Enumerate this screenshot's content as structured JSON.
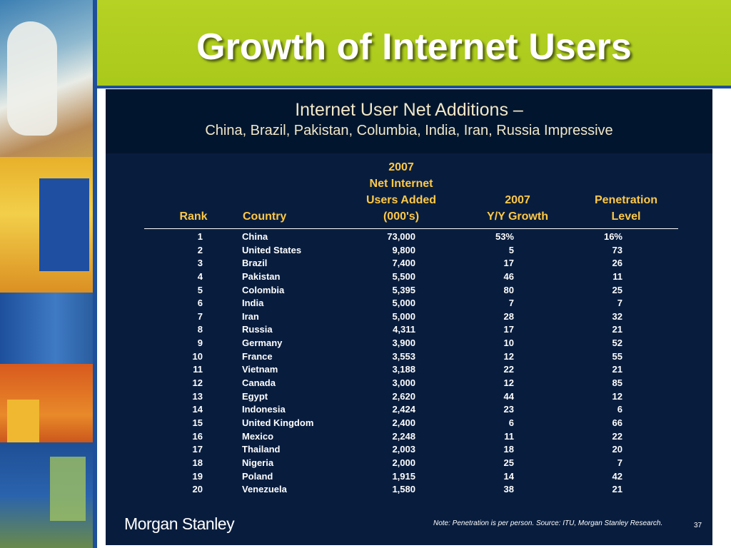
{
  "slide": {
    "title": "Growth of Internet Users"
  },
  "panel": {
    "heading_line1": "Internet User Net Additions –",
    "heading_line2": "China, Brazil, Pakistan, Columbia, India, Iran, Russia Impressive"
  },
  "table": {
    "headers": {
      "rank": "Rank",
      "country": "Country",
      "users_lines": [
        "2007",
        "Net Internet",
        "Users Added",
        "(000's)"
      ],
      "growth_lines": [
        "2007",
        "Y/Y Growth"
      ],
      "penetration_lines": [
        "Penetration",
        "Level"
      ]
    },
    "rows": [
      {
        "rank": "1",
        "country": "China",
        "users": "73,000",
        "growth": "53%",
        "penetration": "16%"
      },
      {
        "rank": "2",
        "country": "United States",
        "users": "9,800",
        "growth": "5",
        "penetration": "73"
      },
      {
        "rank": "3",
        "country": "Brazil",
        "users": "7,400",
        "growth": "17",
        "penetration": "26"
      },
      {
        "rank": "4",
        "country": "Pakistan",
        "users": "5,500",
        "growth": "46",
        "penetration": "11"
      },
      {
        "rank": "5",
        "country": "Colombia",
        "users": "5,395",
        "growth": "80",
        "penetration": "25"
      },
      {
        "rank": "6",
        "country": "India",
        "users": "5,000",
        "growth": "7",
        "penetration": "7"
      },
      {
        "rank": "7",
        "country": "Iran",
        "users": "5,000",
        "growth": "28",
        "penetration": "32"
      },
      {
        "rank": "8",
        "country": "Russia",
        "users": "4,311",
        "growth": "17",
        "penetration": "21"
      },
      {
        "rank": "9",
        "country": "Germany",
        "users": "3,900",
        "growth": "10",
        "penetration": "52"
      },
      {
        "rank": "10",
        "country": "France",
        "users": "3,553",
        "growth": "12",
        "penetration": "55"
      },
      {
        "rank": "11",
        "country": "Vietnam",
        "users": "3,188",
        "growth": "22",
        "penetration": "21"
      },
      {
        "rank": "12",
        "country": "Canada",
        "users": "3,000",
        "growth": "12",
        "penetration": "85"
      },
      {
        "rank": "13",
        "country": "Egypt",
        "users": "2,620",
        "growth": "44",
        "penetration": "12"
      },
      {
        "rank": "14",
        "country": "Indonesia",
        "users": "2,424",
        "growth": "23",
        "penetration": "6"
      },
      {
        "rank": "15",
        "country": "United Kingdom",
        "users": "2,400",
        "growth": "6",
        "penetration": "66"
      },
      {
        "rank": "16",
        "country": "Mexico",
        "users": "2,248",
        "growth": "11",
        "penetration": "22"
      },
      {
        "rank": "17",
        "country": "Thailand",
        "users": "2,003",
        "growth": "18",
        "penetration": "20"
      },
      {
        "rank": "18",
        "country": "Nigeria",
        "users": "2,000",
        "growth": "25",
        "penetration": "7"
      },
      {
        "rank": "19",
        "country": "Poland",
        "users": "1,915",
        "growth": "14",
        "penetration": "42"
      },
      {
        "rank": "20",
        "country": "Venezuela",
        "users": "1,580",
        "growth": "38",
        "penetration": "21"
      }
    ]
  },
  "footer": {
    "logo": "Morgan Stanley",
    "note": "Note: Penetration is per person. Source: ITU, Morgan Stanley Research.",
    "page_number": "37"
  }
}
